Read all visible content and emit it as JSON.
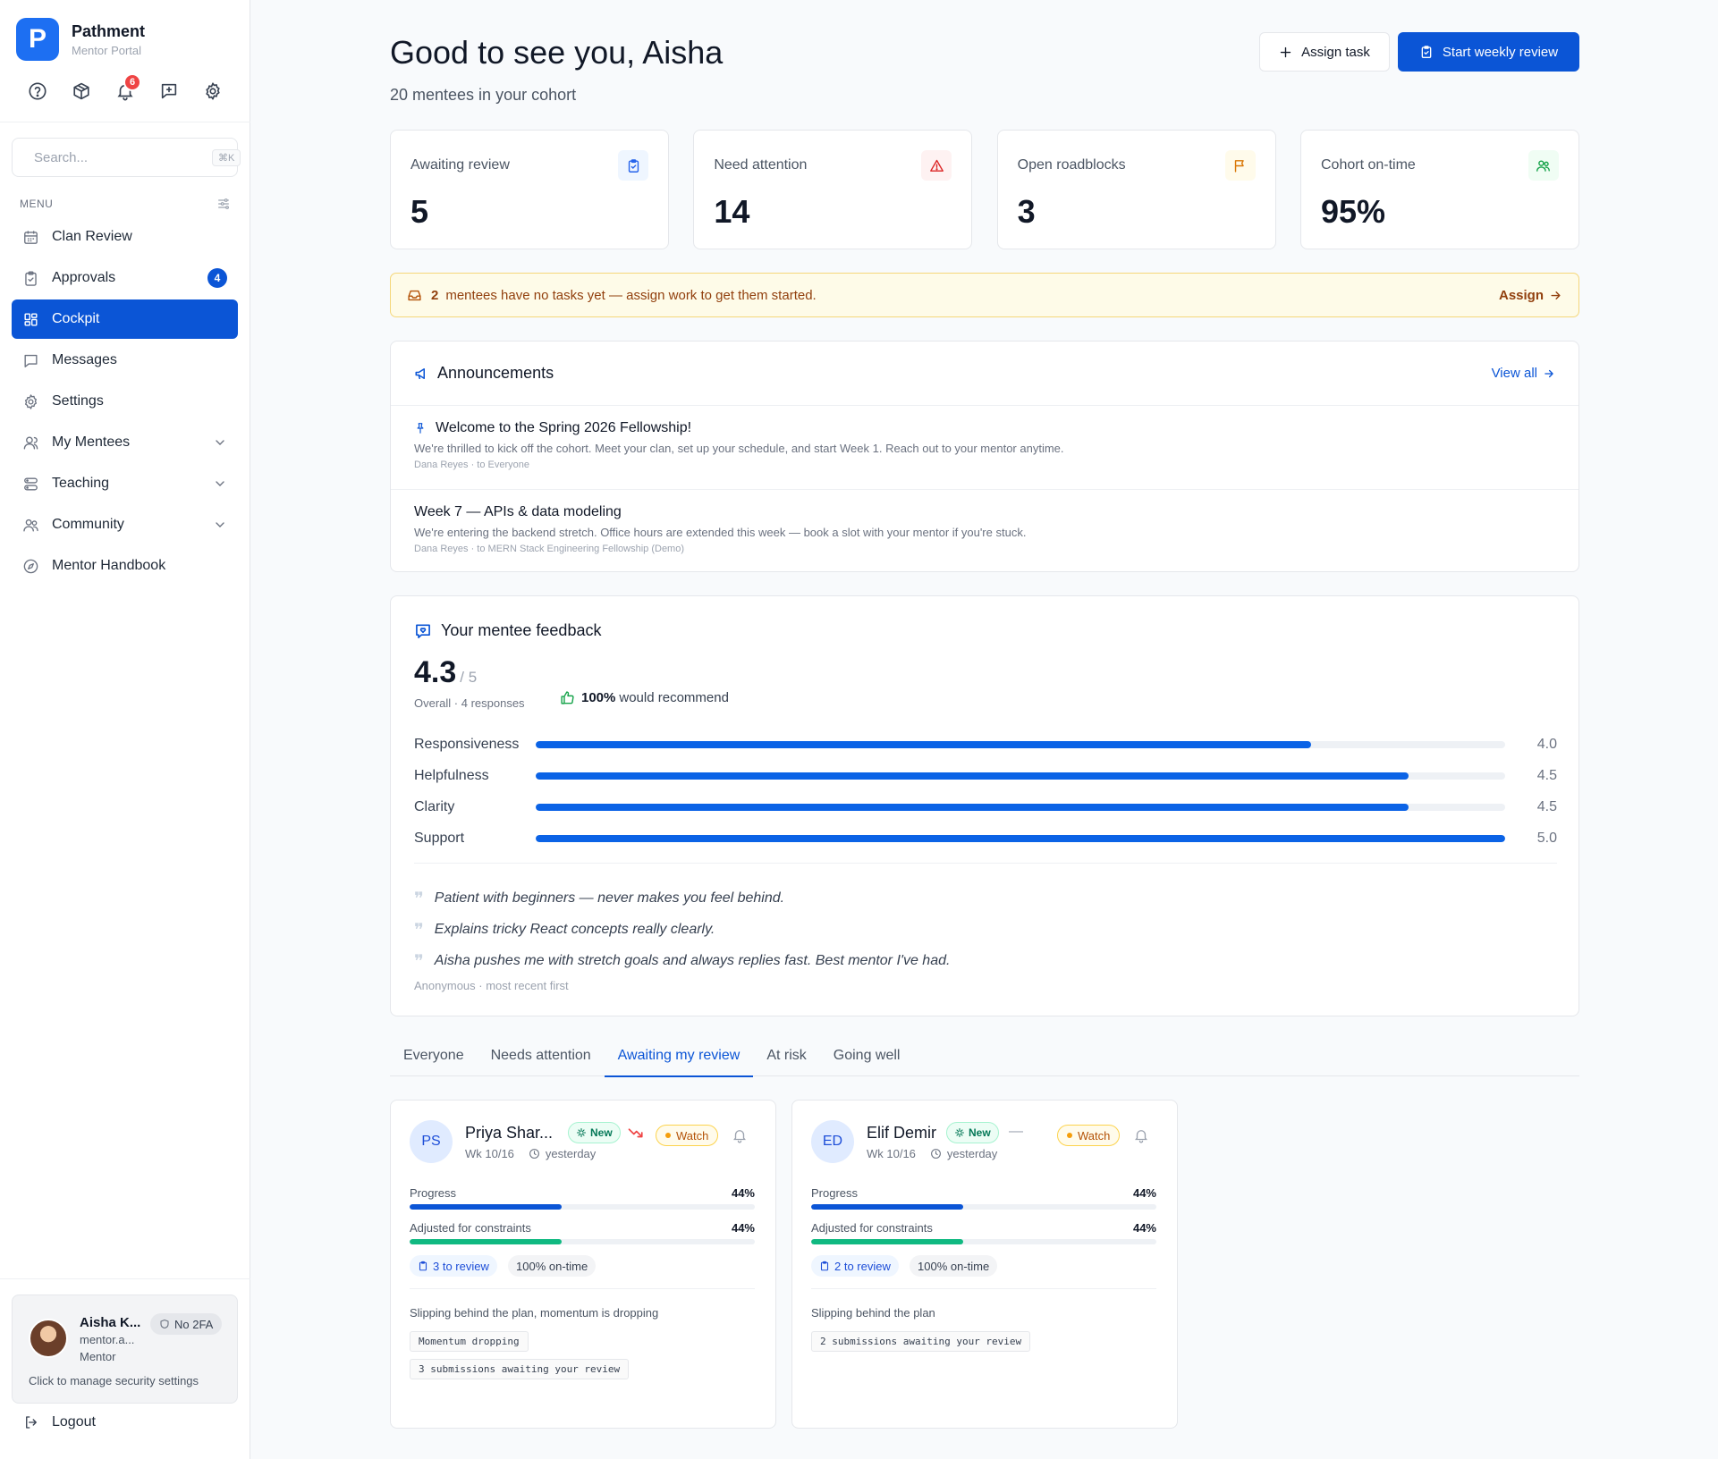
{
  "brand": {
    "name": "Pathment",
    "subtitle": "Mentor Portal",
    "logo_letter": "P"
  },
  "top_icons": [
    {
      "name": "help-circle-icon"
    },
    {
      "name": "package-icon"
    },
    {
      "name": "bell-icon",
      "badge": "6"
    },
    {
      "name": "message-plus-icon"
    },
    {
      "name": "settings-gear-icon"
    }
  ],
  "search": {
    "placeholder": "Search...",
    "shortcut": "⌘K"
  },
  "menu_label": "MENU",
  "nav": [
    {
      "label": "Clan Review",
      "icon": "calendar-icon"
    },
    {
      "label": "Approvals",
      "icon": "clipboard-check-icon",
      "count": "4"
    },
    {
      "label": "Cockpit",
      "icon": "dashboard-grid-icon",
      "active": true
    },
    {
      "label": "Messages",
      "icon": "message-square-icon"
    },
    {
      "label": "Settings",
      "icon": "gear-icon"
    },
    {
      "label": "My Mentees",
      "icon": "user-icon",
      "expandable": true
    },
    {
      "label": "Teaching",
      "icon": "layers-icon",
      "expandable": true
    },
    {
      "label": "Community",
      "icon": "users-icon",
      "expandable": true
    },
    {
      "label": "Mentor Handbook",
      "icon": "compass-icon"
    }
  ],
  "profile": {
    "name": "Aisha K...",
    "email": "mentor.a...",
    "role": "Mentor",
    "twofa": "No 2FA",
    "hint": "Click to manage security settings"
  },
  "logout_label": "Logout",
  "header": {
    "greeting": "Good to see you, Aisha",
    "subtitle": "20 mentees in your cohort",
    "assign_label": "Assign task",
    "review_label": "Start weekly review"
  },
  "stats": [
    {
      "label": "Awaiting review",
      "value": "5",
      "icon": "clipboard-icon",
      "color": "#2563eb",
      "bg": "#eff6ff"
    },
    {
      "label": "Need attention",
      "value": "14",
      "icon": "alert-triangle-icon",
      "color": "#dc2626",
      "bg": "#fef2f2"
    },
    {
      "label": "Open roadblocks",
      "value": "3",
      "icon": "flag-icon",
      "color": "#d97706",
      "bg": "#fffbeb"
    },
    {
      "label": "Cohort on-time",
      "value": "95%",
      "icon": "users-icon",
      "color": "#16a34a",
      "bg": "#f0fdf4"
    }
  ],
  "banner": {
    "count": "2",
    "text": "mentees have no tasks yet — assign work to get them started.",
    "link": "Assign"
  },
  "announcements": {
    "title": "Announcements",
    "view_all": "View all",
    "items": [
      {
        "title": "Welcome to the Spring 2026 Fellowship!",
        "pinned": true,
        "body": "We're thrilled to kick off the cohort. Meet your clan, set up your schedule, and start Week 1. Reach out to your mentor anytime.",
        "meta": "Dana Reyes · to Everyone"
      },
      {
        "title": "Week 7 — APIs & data modeling",
        "pinned": false,
        "body": "We're entering the backend stretch. Office hours are extended this week — book a slot with your mentor if you're stuck.",
        "meta": "Dana Reyes · to MERN Stack Engineering Fellowship (Demo)"
      }
    ]
  },
  "feedback": {
    "title": "Your mentee feedback",
    "score": "4.3",
    "score_of": "/ 5",
    "overall": "Overall · 4 responses",
    "recommend_pct": "100%",
    "recommend_text": "would recommend",
    "scale_max": 5,
    "ratings": [
      {
        "label": "Responsiveness",
        "value": 4.0,
        "display": "4.0"
      },
      {
        "label": "Helpfulness",
        "value": 4.5,
        "display": "4.5"
      },
      {
        "label": "Clarity",
        "value": 4.5,
        "display": "4.5"
      },
      {
        "label": "Support",
        "value": 5.0,
        "display": "5.0"
      }
    ],
    "quotes": [
      "Patient with beginners — never makes you feel behind.",
      "Explains tricky React concepts really clearly.",
      "Aisha pushes me with stretch goals and always replies fast. Best mentor I've had."
    ],
    "footer": "Anonymous · most recent first"
  },
  "tabs": [
    {
      "label": "Everyone"
    },
    {
      "label": "Needs attention"
    },
    {
      "label": "Awaiting my review",
      "active": true
    },
    {
      "label": "At risk"
    },
    {
      "label": "Going well"
    }
  ],
  "mentees": [
    {
      "initials": "PS",
      "name": "Priya Shar...",
      "new_label": "New",
      "trend": "down",
      "watch_label": "Watch",
      "week": "Wk 10/16",
      "last_seen": "yesterday",
      "progress_label": "Progress",
      "progress": "44%",
      "progress_value": 0.44,
      "adjusted_label": "Adjusted for constraints",
      "adjusted": "44%",
      "adjusted_value": 0.44,
      "to_review": "3 to review",
      "on_time": "100% on-time",
      "summary": "Slipping behind the plan, momentum is dropping",
      "tags": [
        "Momentum dropping",
        "3 submissions awaiting your review"
      ]
    },
    {
      "initials": "ED",
      "name": "Elif Demir",
      "new_label": "New",
      "trend": "flat",
      "trend_text": "—",
      "watch_label": "Watch",
      "week": "Wk 10/16",
      "last_seen": "yesterday",
      "progress_label": "Progress",
      "progress": "44%",
      "progress_value": 0.44,
      "adjusted_label": "Adjusted for constraints",
      "adjusted": "44%",
      "adjusted_value": 0.44,
      "to_review": "2 to review",
      "on_time": "100% on-time",
      "summary": "Slipping behind the plan",
      "tags": [
        "2 submissions awaiting your review"
      ]
    }
  ],
  "colors": {
    "primary": "#0b55d6",
    "progress_bar": "#0b63e6",
    "adjusted_bar": "#10b981",
    "warning_bg": "#fefbe8"
  }
}
